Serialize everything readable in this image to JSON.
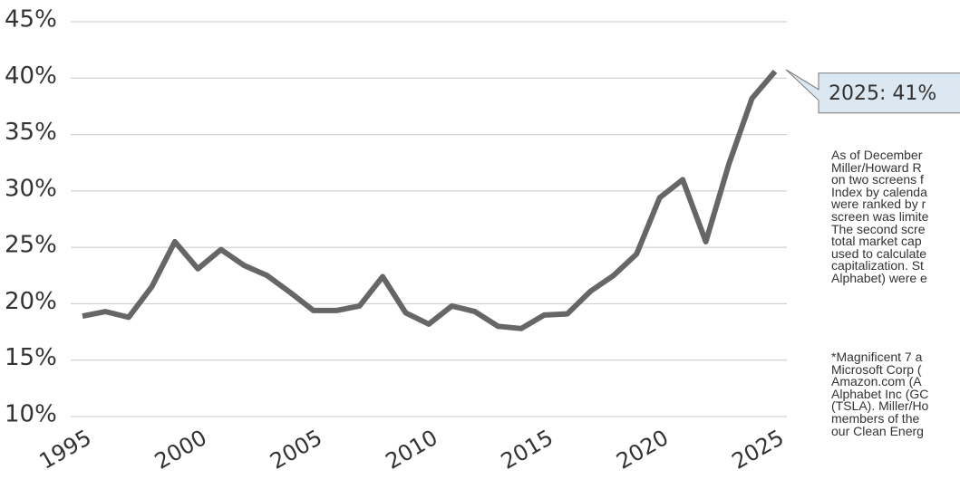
{
  "chart_data": {
    "type": "line",
    "x": [
      1995,
      1996,
      1997,
      1998,
      1999,
      2000,
      2001,
      2002,
      2003,
      2004,
      2005,
      2006,
      2007,
      2008,
      2009,
      2010,
      2011,
      2012,
      2013,
      2014,
      2015,
      2016,
      2017,
      2018,
      2019,
      2020,
      2021,
      2022,
      2023,
      2024,
      2025
    ],
    "values": [
      18.9,
      19.3,
      18.8,
      21.5,
      25.5,
      23.1,
      24.8,
      23.4,
      22.5,
      21.0,
      19.4,
      19.4,
      19.8,
      22.4,
      19.2,
      18.2,
      19.8,
      19.3,
      18.0,
      17.8,
      19.0,
      19.1,
      21.1,
      22.5,
      24.4,
      29.4,
      31.0,
      25.5,
      32.4,
      38.2,
      40.6
    ],
    "value_labels": [
      null,
      null,
      null,
      null,
      null,
      null,
      null,
      null,
      null,
      null,
      null,
      null,
      null,
      null,
      null,
      null,
      null,
      null,
      null,
      null,
      null,
      null,
      null,
      null,
      null,
      null,
      null,
      null,
      null,
      null,
      "2025: 41%"
    ],
    "color": "#666666",
    "xlim": [
      1995,
      2025
    ],
    "xticks": [
      1995,
      2000,
      2005,
      2010,
      2015,
      2020,
      2025
    ],
    "ylim": [
      10,
      45
    ],
    "yticks": [
      {
        "value": 10,
        "label": "10%"
      },
      {
        "value": 15,
        "label": "15%"
      },
      {
        "value": 20,
        "label": "20%"
      },
      {
        "value": 25,
        "label": "25%"
      },
      {
        "value": 30,
        "label": "30%"
      },
      {
        "value": 35,
        "label": "35%"
      },
      {
        "value": 40,
        "label": "40%"
      },
      {
        "value": 45,
        "label": "45%"
      }
    ],
    "grid": true,
    "notes": [
      [
        "As of December",
        "Miller/Howard R",
        "on two screens f",
        "Index by calenda",
        "were ranked by r",
        "screen was limite",
        "The second scre",
        "total market cap",
        "used to calculate",
        "capitalization. St",
        "Alphabet) were e"
      ],
      [
        "*Magnificent 7 a",
        "Microsoft Corp (",
        "Amazon.com (A",
        "Alphabet Inc (GC",
        "(TSLA). Miller/Ho",
        "members of the",
        "our Clean Energ"
      ]
    ]
  }
}
